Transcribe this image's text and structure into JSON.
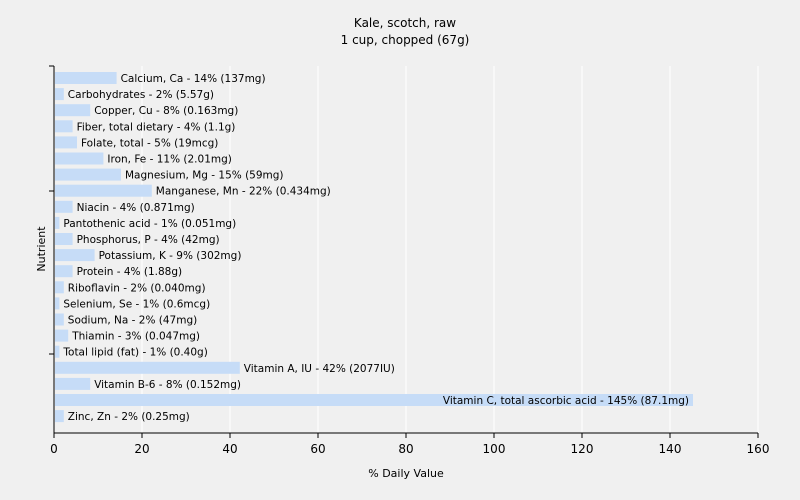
{
  "chart_data": {
    "type": "bar",
    "orientation": "horizontal",
    "title": "Kale, scotch, raw",
    "subtitle": "1 cup, chopped (67g)",
    "xlabel": "% Daily Value",
    "ylabel": "Nutrient",
    "xlim": [
      0,
      160
    ],
    "xticks": [
      0,
      20,
      40,
      60,
      80,
      100,
      120,
      140,
      160
    ],
    "grid": "vertical",
    "bar_color": "#c6dcf7",
    "gridline_color": "#ffffff",
    "categories": [
      "Calcium, Ca",
      "Carbohydrates",
      "Copper, Cu",
      "Fiber, total dietary",
      "Folate, total",
      "Iron, Fe",
      "Magnesium, Mg",
      "Manganese, Mn",
      "Niacin",
      "Pantothenic acid",
      "Phosphorus, P",
      "Potassium, K",
      "Protein",
      "Riboflavin",
      "Selenium, Se",
      "Sodium, Na",
      "Thiamin",
      "Total lipid (fat)",
      "Vitamin A, IU",
      "Vitamin B-6",
      "Vitamin C, total ascorbic acid",
      "Zinc, Zn"
    ],
    "values": [
      14,
      2,
      8,
      4,
      5,
      11,
      15,
      22,
      4,
      1,
      4,
      9,
      4,
      2,
      1,
      2,
      3,
      1,
      42,
      8,
      145,
      2
    ],
    "bar_labels": [
      "Calcium, Ca - 14% (137mg)",
      "Carbohydrates - 2% (5.57g)",
      "Copper, Cu - 8% (0.163mg)",
      "Fiber, total dietary - 4% (1.1g)",
      "Folate, total - 5% (19mcg)",
      "Iron, Fe - 11% (2.01mg)",
      "Magnesium, Mg - 15% (59mg)",
      "Manganese, Mn - 22% (0.434mg)",
      "Niacin - 4% (0.871mg)",
      "Pantothenic acid - 1% (0.051mg)",
      "Phosphorus, P - 4% (42mg)",
      "Potassium, K - 9% (302mg)",
      "Protein - 4% (1.88g)",
      "Riboflavin - 2% (0.040mg)",
      "Selenium, Se - 1% (0.6mcg)",
      "Sodium, Na - 2% (47mg)",
      "Thiamin - 3% (0.047mg)",
      "Total lipid (fat) - 1% (0.40g)",
      "Vitamin A, IU - 42% (2077IU)",
      "Vitamin B-6 - 8% (0.152mg)",
      "Vitamin C, total ascorbic acid - 145% (87.1mg)",
      "Zinc, Zn - 2% (0.25mg)"
    ]
  }
}
